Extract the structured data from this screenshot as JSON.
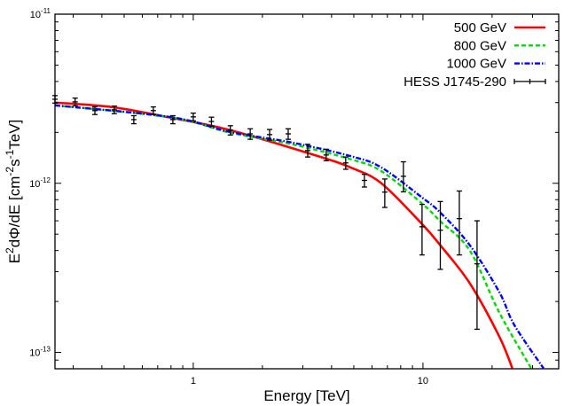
{
  "chart_data": {
    "type": "line",
    "xscale": "log",
    "yscale": "log",
    "xlim": [
      0.25,
      39
    ],
    "ylim": [
      8e-14,
      1e-11
    ],
    "grid": false,
    "legend_placement": "top-right",
    "xlabel": "Energy [TeV]",
    "ylabel_parts": [
      {
        "t": "E"
      },
      {
        "t": "2",
        "sup": true
      },
      {
        "t": "dΦ/dE [cm"
      },
      {
        "t": "-2",
        "sup": true
      },
      {
        "t": "s"
      },
      {
        "t": "-1",
        "sup": true
      },
      {
        "t": "TeV]"
      }
    ],
    "xticks": [
      {
        "value": 1,
        "label": "1"
      },
      {
        "value": 10,
        "label": "10"
      }
    ],
    "yticks": [
      {
        "value": 1e-13,
        "base": "10",
        "exp": "-13"
      },
      {
        "value": 1e-12,
        "base": "10",
        "exp": "-12"
      },
      {
        "value": 1e-11,
        "base": "10",
        "exp": "-11"
      }
    ],
    "series": [
      {
        "name": "500 GeV",
        "color": "#ff0000",
        "style": "solid",
        "x": [
          0.25,
          0.445,
          0.8,
          1.45,
          3.53,
          4.91,
          6.59,
          9.91,
          11.9,
          16.0,
          21.5,
          24.5
        ],
        "y": [
          3e-12,
          2.82e-12,
          2.44e-12,
          2.06e-12,
          1.44e-12,
          1.23e-12,
          1e-12,
          5.74e-13,
          4.3e-13,
          2.56e-13,
          1.24e-13,
          8.05e-14
        ]
      },
      {
        "name": "800 GeV",
        "color": "#00dd00",
        "style": "dashed",
        "x": [
          0.25,
          0.8,
          1.45,
          2.7,
          4.91,
          6.59,
          9.91,
          11.9,
          16.0,
          21.5,
          29.6
        ],
        "y": [
          2.89e-12,
          2.45e-12,
          1.99e-12,
          1.7e-12,
          1.38e-12,
          1.18e-12,
          7.59e-13,
          5.96e-13,
          4e-13,
          1.72e-13,
          8.05e-14
        ]
      },
      {
        "name": "1000 GeV",
        "color": "#0000ff",
        "style": "dash-dot",
        "x": [
          0.25,
          0.8,
          1.45,
          2.7,
          4.91,
          6.59,
          9.91,
          11.9,
          16.0,
          21.5,
          25.0,
          33.5
        ],
        "y": [
          2.89e-12,
          2.46e-12,
          2.01e-12,
          1.74e-12,
          1.44e-12,
          1.24e-12,
          8.24e-13,
          6.71e-13,
          4.3e-13,
          2.27e-13,
          1.45e-13,
          8.05e-14
        ]
      }
    ],
    "points": {
      "name": "HESS J1745-290",
      "color": "#000000",
      "x": [
        0.25,
        0.306,
        0.373,
        0.453,
        0.551,
        0.67,
        0.815,
        1.0,
        1.2,
        1.45,
        1.77,
        2.15,
        2.59,
        3.15,
        3.79,
        4.61,
        5.56,
        6.82,
        8.22,
        9.91,
        11.9,
        14.4,
        17.2
      ],
      "y": [
        3.14e-12,
        3.03e-12,
        2.69e-12,
        2.72e-12,
        2.38e-12,
        2.69e-12,
        2.38e-12,
        2.47e-12,
        2.32e-12,
        2.06e-12,
        1.96e-12,
        1.94e-12,
        1.96e-12,
        1.56e-12,
        1.47e-12,
        1.32e-12,
        1.04e-12,
        8.87e-13,
        1.1e-12,
        5.53e-13,
        5.28e-13,
        6.18e-13,
        3.34e-13
      ],
      "y_low": [
        2.98e-12,
        2.87e-12,
        2.55e-12,
        2.58e-12,
        2.25e-12,
        2.55e-12,
        2.25e-12,
        2.34e-12,
        2.18e-12,
        1.93e-12,
        1.82e-12,
        1.8e-12,
        1.82e-12,
        1.43e-12,
        1.36e-12,
        1.21e-12,
        9.5e-13,
        7.2e-13,
        8.9e-13,
        3.77e-13,
        3.1e-13,
        3.77e-13,
        1.37e-13
      ],
      "y_high": [
        3.3e-12,
        3.19e-12,
        2.83e-12,
        2.86e-12,
        2.51e-12,
        2.83e-12,
        2.51e-12,
        2.6e-12,
        2.46e-12,
        2.19e-12,
        2.1e-12,
        2.08e-12,
        2.1e-12,
        1.7e-12,
        1.59e-12,
        1.43e-12,
        1.13e-12,
        1.06e-12,
        1.34e-12,
        7.5e-13,
        7.8e-13,
        9e-13,
        6e-13
      ]
    }
  }
}
